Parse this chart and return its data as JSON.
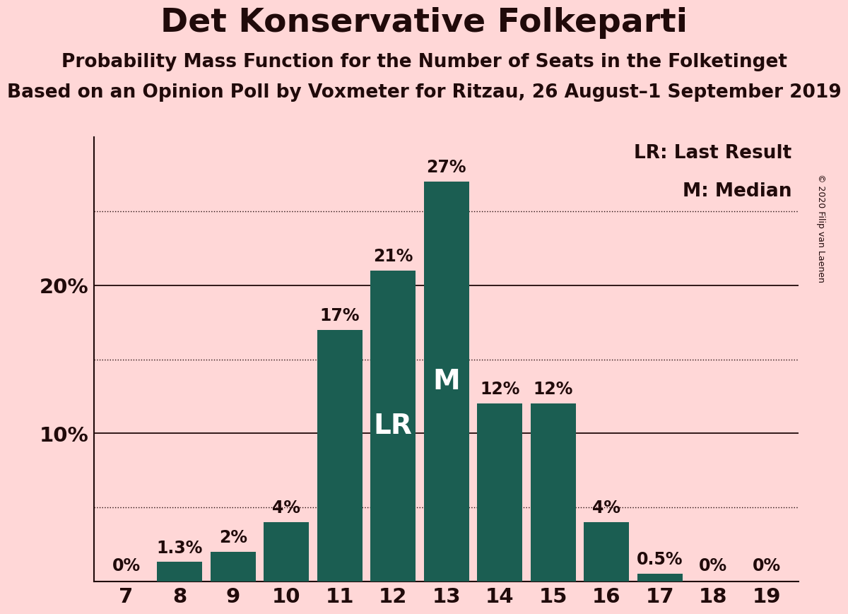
{
  "title": "Det Konservative Folkeparti",
  "subtitle1": "Probability Mass Function for the Number of Seats in the Folketinget",
  "subtitle2": "Based on an Opinion Poll by Voxmeter for Ritzau, 26 August–1 September 2019",
  "copyright": "© 2020 Filip van Laenen",
  "seats": [
    7,
    8,
    9,
    10,
    11,
    12,
    13,
    14,
    15,
    16,
    17,
    18,
    19
  ],
  "probabilities": [
    0.0,
    1.3,
    2.0,
    4.0,
    17.0,
    21.0,
    27.0,
    12.0,
    12.0,
    4.0,
    0.5,
    0.0,
    0.0
  ],
  "labels": [
    "0%",
    "1.3%",
    "2%",
    "4%",
    "17%",
    "21%",
    "27%",
    "12%",
    "12%",
    "4%",
    "0.5%",
    "0%",
    "0%"
  ],
  "bar_color": "#1b5e52",
  "background_color": "#ffd7d7",
  "text_color": "#200a0a",
  "lr_seat": 12,
  "median_seat": 13,
  "ylim": [
    0,
    30
  ],
  "solid_gridlines": [
    10,
    20
  ],
  "dotted_gridlines": [
    5,
    15,
    25
  ],
  "ylabel_ticks": [
    10,
    20
  ],
  "title_fontsize": 34,
  "subtitle1_fontsize": 19,
  "subtitle2_fontsize": 19,
  "label_fontsize": 17,
  "tick_fontsize": 21,
  "legend_fontsize": 19,
  "lr_label_fontsize": 28,
  "m_label_fontsize": 28,
  "copyright_fontsize": 9
}
